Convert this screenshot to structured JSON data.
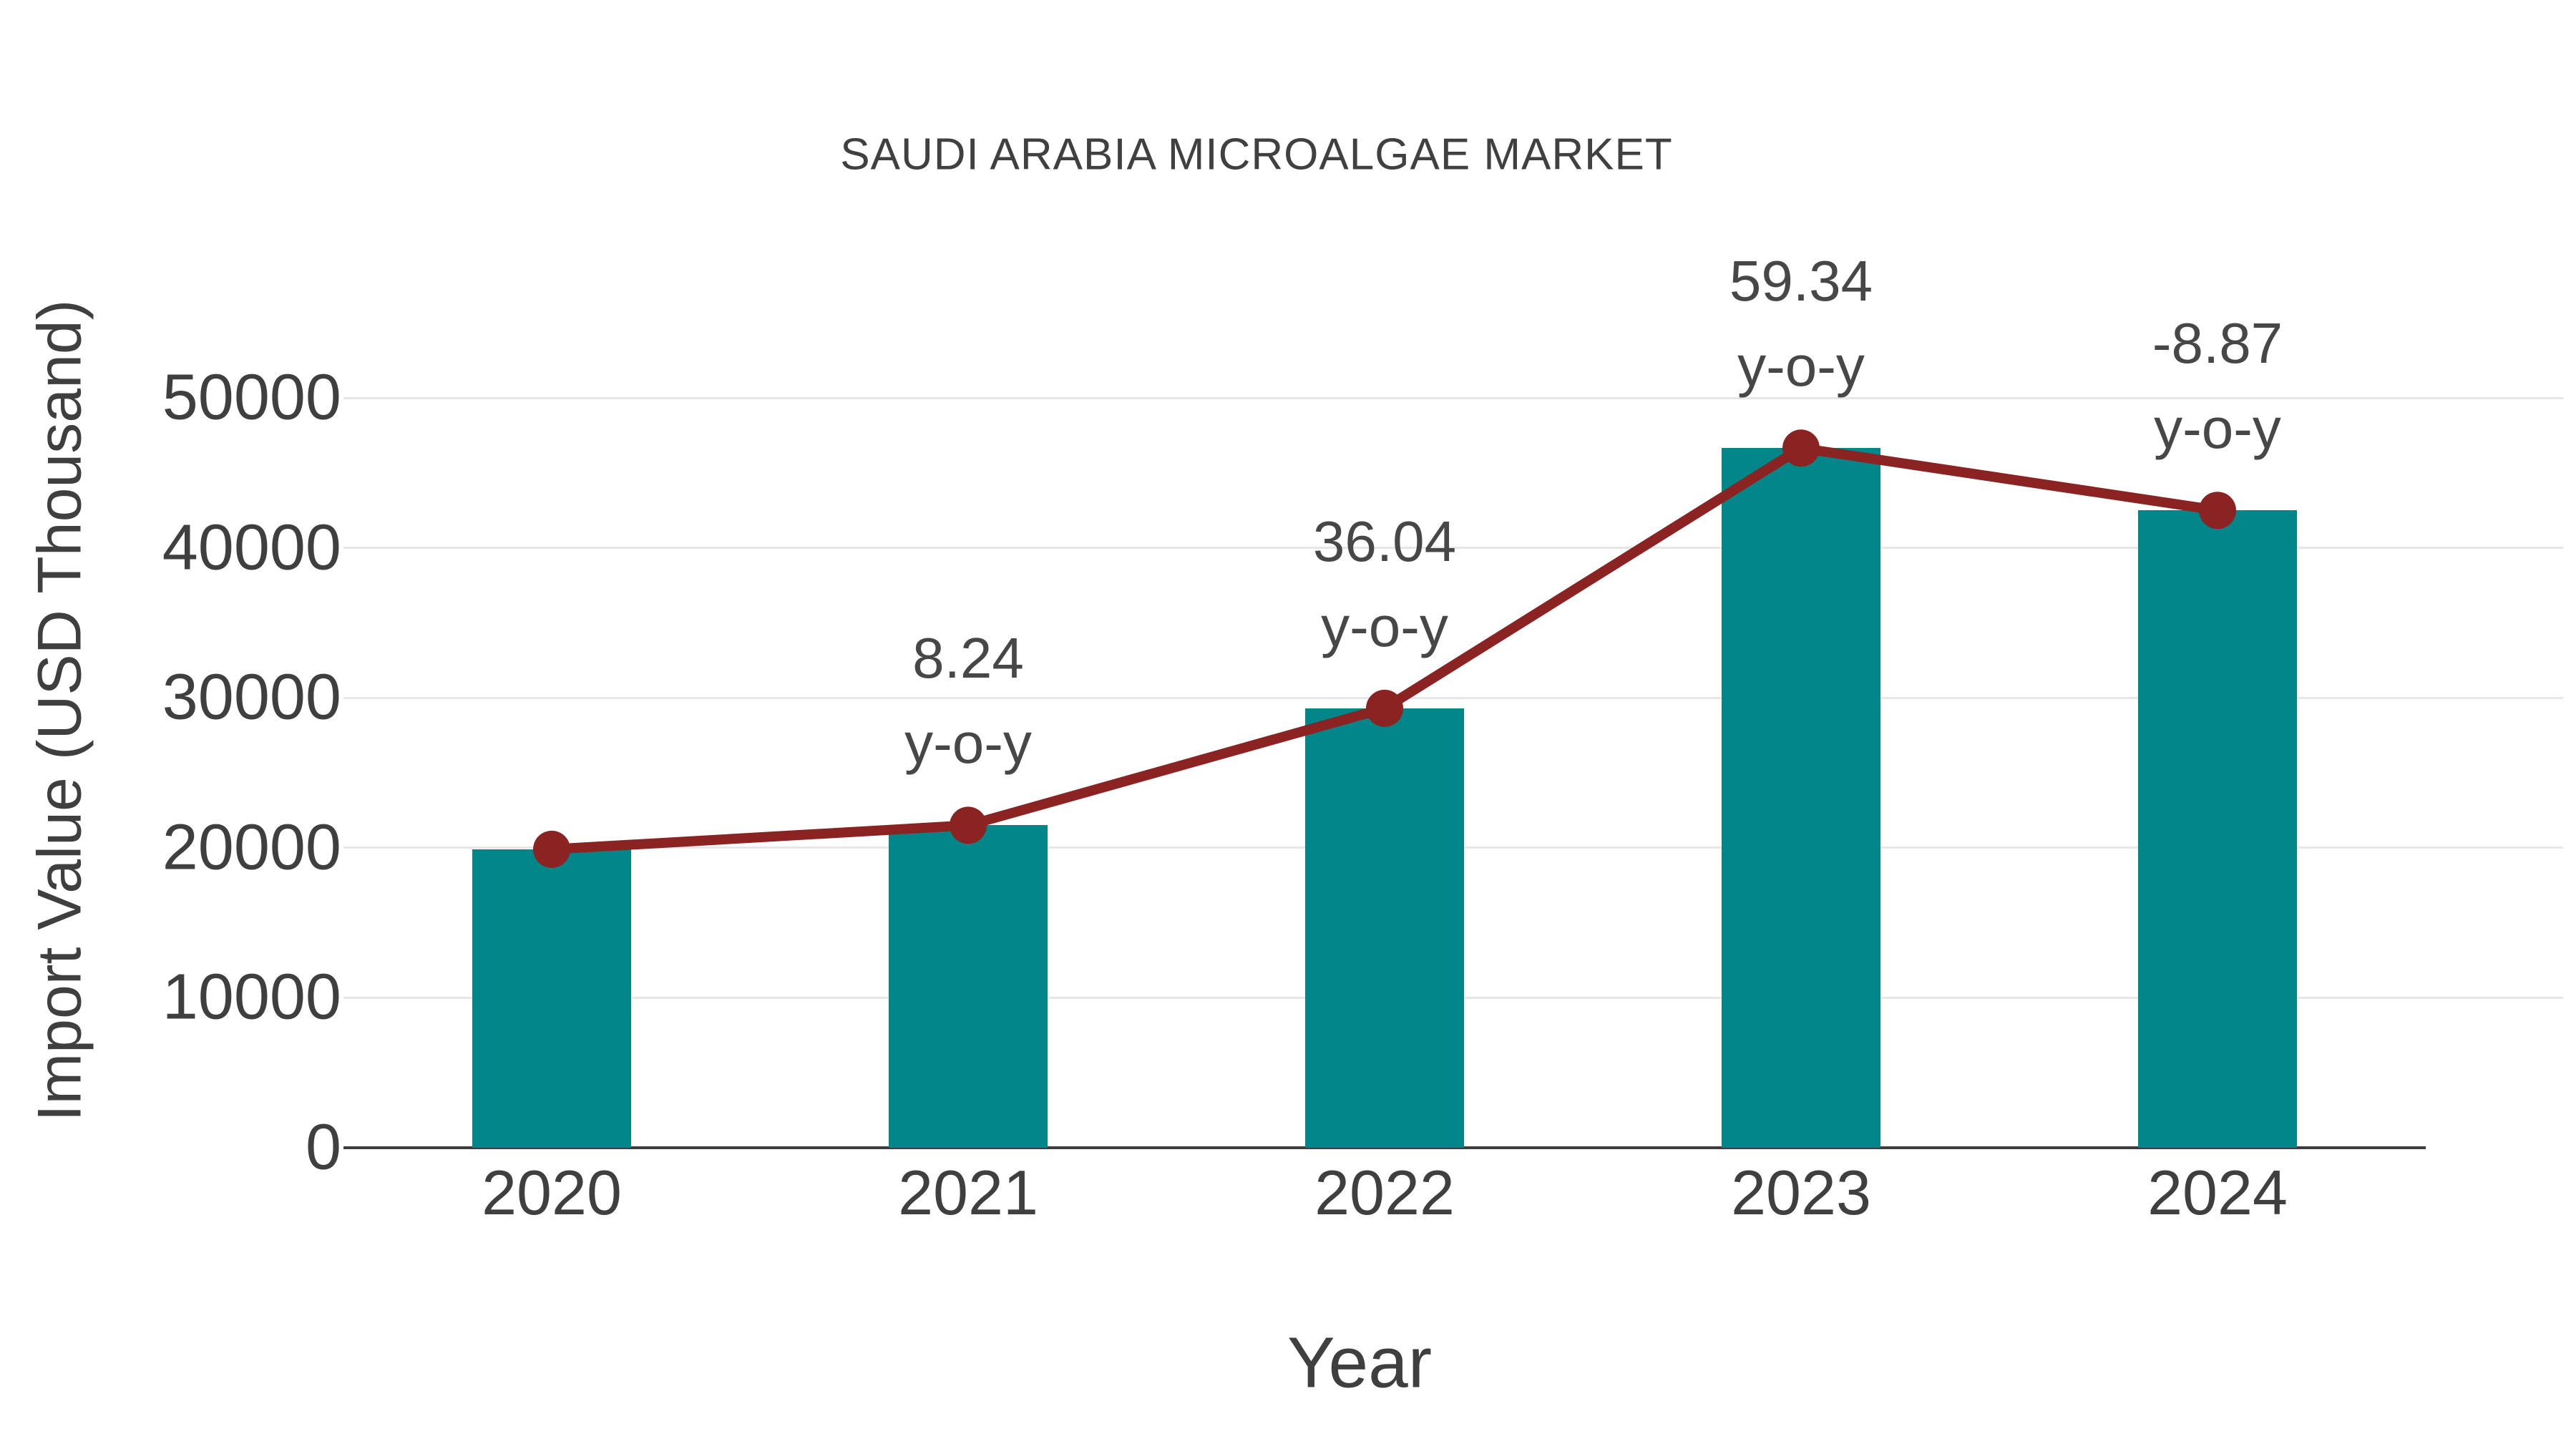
{
  "title": "SAUDI ARABIA MICROALGAE MARKET",
  "chart_data": {
    "type": "bar+line",
    "title": "SAUDI ARABIA MICROALGAE MARKET",
    "categories": [
      "2020",
      "2021",
      "2022",
      "2023",
      "2024"
    ],
    "series": [
      {
        "name": "Import Value bars",
        "type": "bar",
        "values": [
          19900,
          21500,
          29300,
          46650,
          42500
        ]
      },
      {
        "name": "Import Value trend line",
        "type": "line",
        "values": [
          19900,
          21500,
          29300,
          46650,
          42500
        ]
      }
    ],
    "annotations": [
      {
        "category": "2021",
        "value_label": "8.24",
        "suffix_label": "y-o-y"
      },
      {
        "category": "2022",
        "value_label": "36.04",
        "suffix_label": "y-o-y"
      },
      {
        "category": "2023",
        "value_label": "59.34",
        "suffix_label": "y-o-y"
      },
      {
        "category": "2024",
        "value_label": "-8.87",
        "suffix_label": "y-o-y"
      }
    ],
    "xlabel": "Year",
    "ylabel": "Import Value (USD Thousand)",
    "yticks": [
      0,
      10000,
      20000,
      30000,
      40000,
      50000
    ],
    "ylim": [
      0,
      53000
    ],
    "grid": "horizontal",
    "legend": "none",
    "colors": {
      "bar": "#028689",
      "line": "#8b2323",
      "grid": "#e7e7e7",
      "axis": "#3d3d3d",
      "text": "#404040"
    }
  }
}
